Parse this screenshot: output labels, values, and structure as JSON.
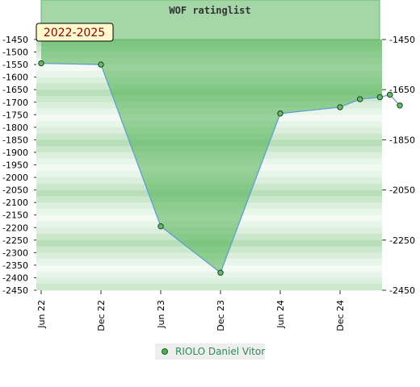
{
  "chart_data": {
    "type": "line",
    "title": "WOF ratinglist",
    "period_label": "2022-2025",
    "x_tick_labels": [
      "Jun 22",
      "Dec 22",
      "Jun 23",
      "Dec 23",
      "Jun 24",
      "Dec 24"
    ],
    "y_left_ticks": [
      -1450,
      -1500,
      -1550,
      -1600,
      -1650,
      -1700,
      -1750,
      -1800,
      -1850,
      -1900,
      -1950,
      -2000,
      -2050,
      -2100,
      -2150,
      -2200,
      -2250,
      -2300,
      -2350,
      -2400,
      -2450
    ],
    "y_right_ticks": [
      -1450,
      -1650,
      -1850,
      -2050,
      -2250,
      -2450
    ],
    "ylim": [
      -2450,
      -1450
    ],
    "series": [
      {
        "name": "RIOLO Daniel Vitor",
        "color": "#2e8b57",
        "points": [
          {
            "x": "2022-06",
            "y": -1545
          },
          {
            "x": "2022-12",
            "y": -1550
          },
          {
            "x": "2023-06",
            "y": -2195
          },
          {
            "x": "2023-12",
            "y": -2380
          },
          {
            "x": "2024-06",
            "y": -1745
          },
          {
            "x": "2024-12",
            "y": -1720
          },
          {
            "x": "2025-02",
            "y": -1688
          },
          {
            "x": "2025-04",
            "y": -1680
          },
          {
            "x": "2025-05",
            "y": -1670
          },
          {
            "x": "2025-06",
            "y": -1713
          }
        ]
      }
    ],
    "legend_position": "bottom-center",
    "grid": "horizontal bands"
  }
}
